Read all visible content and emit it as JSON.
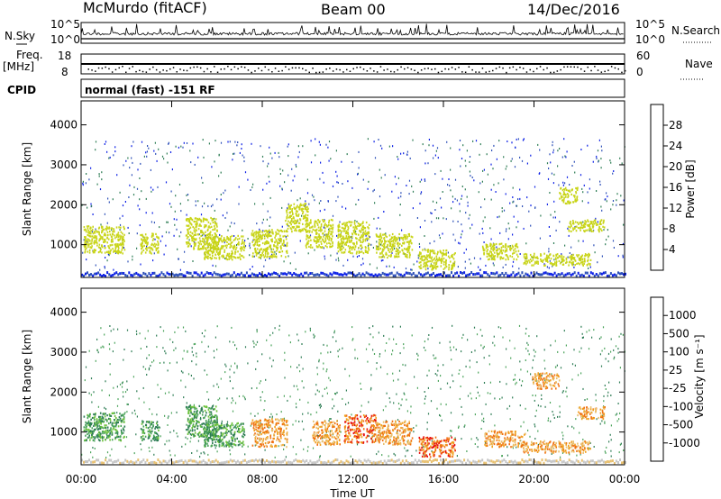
{
  "header": {
    "station": "McMurdo (fitACF)",
    "beam": "Beam 00",
    "date": "14/Dec/2016"
  },
  "top_panels": {
    "nsky_label": "N.Sky",
    "nsearch_label": "N.Search",
    "freq_label": "Freq.",
    "freq_unit": "[MHz]",
    "nave_label": "Nave",
    "cpid_label": "CPID",
    "cpid_value": "normal (fast) -151 RF",
    "noise_ticks_left": [
      "10^5",
      "10^0"
    ],
    "noise_ticks_right": [
      "10^5",
      "10^0"
    ],
    "freq_ticks": [
      "18",
      "8"
    ],
    "nave_ticks": [
      "60",
      "0"
    ]
  },
  "chart_data": [
    {
      "type": "heatmap",
      "panel": "power",
      "ylabel": "Slant Range [km]",
      "xlabel": "Time UT",
      "x_ticks": [
        "00:00",
        "04:00",
        "08:00",
        "12:00",
        "16:00",
        "20:00",
        "00:00"
      ],
      "xlim_hours": [
        0,
        24
      ],
      "ylim": [
        180,
        4600
      ],
      "y_ticks": [
        1000,
        2000,
        3000,
        4000
      ],
      "colorbar": {
        "label": "Power [dB]",
        "ticks": [
          4,
          8,
          12,
          16,
          20,
          24,
          28
        ],
        "range": [
          0,
          30
        ],
        "colors": [
          "#0b1fe6",
          "#2d50b8",
          "#2e7d55",
          "#4aa35a",
          "#c8d418",
          "#f0a51a",
          "#f07d10",
          "#f04a10",
          "#e01010"
        ]
      },
      "echo_blobs": [
        {
          "t": 1.0,
          "r": 1150,
          "dt": 0.9,
          "dr": 350,
          "v": 10
        },
        {
          "t": 3.0,
          "r": 1050,
          "dt": 0.4,
          "dr": 250,
          "v": 9
        },
        {
          "t": 5.3,
          "r": 1300,
          "dt": 0.7,
          "dr": 400,
          "v": 11
        },
        {
          "t": 6.3,
          "r": 950,
          "dt": 0.9,
          "dr": 300,
          "v": 17
        },
        {
          "t": 8.3,
          "r": 1050,
          "dt": 0.8,
          "dr": 350,
          "v": 16
        },
        {
          "t": 9.5,
          "r": 1700,
          "dt": 0.5,
          "dr": 350,
          "v": 9
        },
        {
          "t": 10.5,
          "r": 1300,
          "dt": 0.6,
          "dr": 350,
          "v": 9
        },
        {
          "t": 12.0,
          "r": 1200,
          "dt": 0.7,
          "dr": 400,
          "v": 9
        },
        {
          "t": 13.8,
          "r": 1000,
          "dt": 0.8,
          "dr": 300,
          "v": 9
        },
        {
          "t": 15.7,
          "r": 650,
          "dt": 0.8,
          "dr": 250,
          "v": 10
        },
        {
          "t": 18.5,
          "r": 850,
          "dt": 0.8,
          "dr": 200,
          "v": 9
        },
        {
          "t": 21.5,
          "r": 2250,
          "dt": 0.4,
          "dr": 200,
          "v": 8
        },
        {
          "t": 22.3,
          "r": 1500,
          "dt": 0.8,
          "dr": 150,
          "v": 9
        },
        {
          "t": 21.0,
          "r": 650,
          "dt": 1.5,
          "dr": 150,
          "v": 8
        }
      ]
    },
    {
      "type": "heatmap",
      "panel": "velocity",
      "ylabel": "Slant Range [km]",
      "xlabel": "Time UT",
      "x_ticks": [
        "00:00",
        "04:00",
        "08:00",
        "12:00",
        "16:00",
        "20:00",
        "00:00"
      ],
      "xlim_hours": [
        0,
        24
      ],
      "ylim": [
        180,
        4600
      ],
      "y_ticks": [
        1000,
        2000,
        3000,
        4000
      ],
      "colorbar": {
        "label": "Velocity [m s⁻¹]",
        "ticks": [
          "1000",
          "500",
          "100",
          "25",
          "-25",
          "-100",
          "-500",
          "-1000"
        ],
        "colors": [
          "#2a3fc4",
          "#2f5f9e",
          "#2e7d55",
          "#4aa35a",
          "#6cc23a",
          "#c6c6c6",
          "#e8c070",
          "#f0a020",
          "#f07010",
          "#e81010"
        ]
      },
      "echo_blobs": [
        {
          "t": 1.0,
          "r": 1150,
          "dt": 0.9,
          "dr": 350,
          "v": 3
        },
        {
          "t": 3.0,
          "r": 1050,
          "dt": 0.4,
          "dr": 250,
          "v": 3
        },
        {
          "t": 5.3,
          "r": 1300,
          "dt": 0.7,
          "dr": 400,
          "v": 3
        },
        {
          "t": 6.3,
          "r": 950,
          "dt": 0.9,
          "dr": 300,
          "v": 3
        },
        {
          "t": 8.3,
          "r": 1000,
          "dt": 0.8,
          "dr": 350,
          "v": 7
        },
        {
          "t": 10.8,
          "r": 1000,
          "dt": 0.6,
          "dr": 300,
          "v": 7
        },
        {
          "t": 12.3,
          "r": 1100,
          "dt": 0.7,
          "dr": 350,
          "v": 8
        },
        {
          "t": 13.8,
          "r": 1000,
          "dt": 0.8,
          "dr": 300,
          "v": 7
        },
        {
          "t": 15.7,
          "r": 650,
          "dt": 0.8,
          "dr": 250,
          "v": 8
        },
        {
          "t": 18.7,
          "r": 850,
          "dt": 0.9,
          "dr": 200,
          "v": 7
        },
        {
          "t": 20.5,
          "r": 2300,
          "dt": 0.6,
          "dr": 200,
          "v": 7
        },
        {
          "t": 22.5,
          "r": 1500,
          "dt": 0.6,
          "dr": 150,
          "v": 7
        },
        {
          "t": 21.0,
          "r": 650,
          "dt": 1.5,
          "dr": 150,
          "v": 7
        }
      ]
    }
  ]
}
